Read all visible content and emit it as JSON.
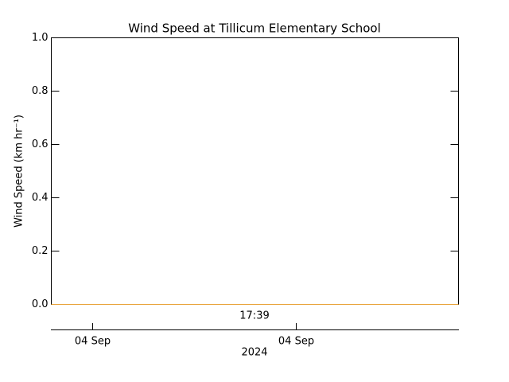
{
  "chart_data": {
    "type": "line",
    "title": "Wind Speed at Tillicum Elementary School",
    "y_label": "Wind Speed (km hr⁻¹)",
    "time_label": "17:39",
    "date_ticks": [
      "04 Sep",
      "04 Sep"
    ],
    "date_label": "2024",
    "series": [
      {
        "color": "#e8a33a",
        "values": [
          0,
          0
        ]
      }
    ],
    "ylim": [
      0,
      1
    ],
    "yticks": [
      {
        "value": 0,
        "label": "0.0"
      },
      {
        "value": 0.2,
        "label": "0.2"
      },
      {
        "value": 0.4,
        "label": "0.4"
      },
      {
        "value": 0.6,
        "label": "0.6"
      },
      {
        "value": 0.8,
        "label": "0.8"
      },
      {
        "value": 1,
        "label": "1.0"
      }
    ]
  }
}
